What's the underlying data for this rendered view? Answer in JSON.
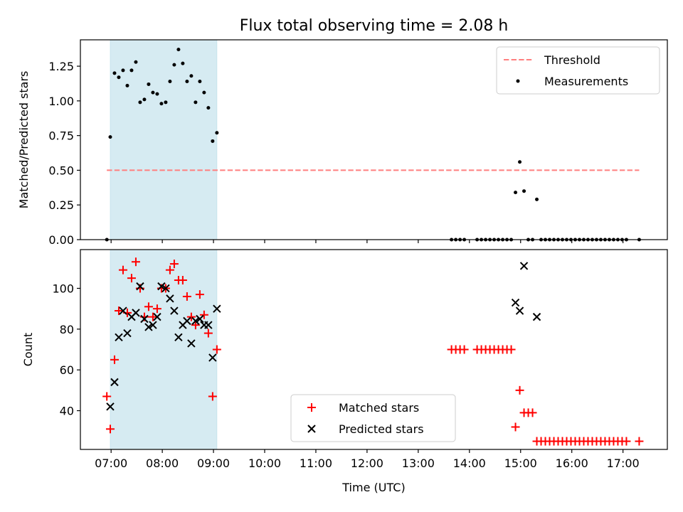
{
  "chart_data": [
    {
      "type": "scatter",
      "title": "Flux total observing time = 2.08 h",
      "xlabel": "",
      "ylabel": "Matched/Predicted stars",
      "ylim": [
        0,
        1.44
      ],
      "yticks": [
        0.0,
        0.25,
        0.5,
        0.75,
        1.0,
        1.25
      ],
      "ytick_labels": [
        "0.00",
        "0.25",
        "0.50",
        "0.75",
        "1.00",
        "1.25"
      ],
      "shaded_span": [
        "06:59",
        "09:04"
      ],
      "threshold": {
        "name": "Threshold",
        "value": 0.5,
        "x_range": [
          "06:55",
          "17:19"
        ],
        "color": "#ff7f7f"
      },
      "series": [
        {
          "name": "Measurements",
          "color": "#000000",
          "marker": "dot",
          "points": [
            [
              "06:55",
              0.0
            ],
            [
              "06:59",
              0.74
            ],
            [
              "07:04",
              1.2
            ],
            [
              "07:09",
              1.17
            ],
            [
              "07:14",
              1.22
            ],
            [
              "07:19",
              1.11
            ],
            [
              "07:24",
              1.22
            ],
            [
              "07:29",
              1.28
            ],
            [
              "07:34",
              0.99
            ],
            [
              "07:39",
              1.01
            ],
            [
              "07:44",
              1.12
            ],
            [
              "07:49",
              1.06
            ],
            [
              "07:54",
              1.05
            ],
            [
              "07:59",
              0.98
            ],
            [
              "08:04",
              0.99
            ],
            [
              "08:09",
              1.14
            ],
            [
              "08:14",
              1.26
            ],
            [
              "08:19",
              1.37
            ],
            [
              "08:24",
              1.27
            ],
            [
              "08:29",
              1.14
            ],
            [
              "08:34",
              1.18
            ],
            [
              "08:39",
              0.99
            ],
            [
              "08:44",
              1.14
            ],
            [
              "08:49",
              1.06
            ],
            [
              "08:54",
              0.95
            ],
            [
              "08:59",
              0.71
            ],
            [
              "09:04",
              0.77
            ],
            [
              "13:39",
              0.0
            ],
            [
              "13:44",
              0.0
            ],
            [
              "13:49",
              0.0
            ],
            [
              "13:54",
              0.0
            ],
            [
              "14:09",
              0.0
            ],
            [
              "14:14",
              0.0
            ],
            [
              "14:19",
              0.0
            ],
            [
              "14:24",
              0.0
            ],
            [
              "14:29",
              0.0
            ],
            [
              "14:34",
              0.0
            ],
            [
              "14:39",
              0.0
            ],
            [
              "14:44",
              0.0
            ],
            [
              "14:49",
              0.0
            ],
            [
              "14:54",
              0.34
            ],
            [
              "14:59",
              0.56
            ],
            [
              "15:04",
              0.35
            ],
            [
              "15:09",
              0.0
            ],
            [
              "15:14",
              0.0
            ],
            [
              "15:19",
              0.29
            ],
            [
              "15:24",
              0.0
            ],
            [
              "15:29",
              0.0
            ],
            [
              "15:34",
              0.0
            ],
            [
              "15:39",
              0.0
            ],
            [
              "15:44",
              0.0
            ],
            [
              "15:49",
              0.0
            ],
            [
              "15:54",
              0.0
            ],
            [
              "15:59",
              0.0
            ],
            [
              "16:04",
              0.0
            ],
            [
              "16:09",
              0.0
            ],
            [
              "16:14",
              0.0
            ],
            [
              "16:19",
              0.0
            ],
            [
              "16:24",
              0.0
            ],
            [
              "16:29",
              0.0
            ],
            [
              "16:34",
              0.0
            ],
            [
              "16:39",
              0.0
            ],
            [
              "16:44",
              0.0
            ],
            [
              "16:49",
              0.0
            ],
            [
              "16:54",
              0.0
            ],
            [
              "16:59",
              0.0
            ],
            [
              "17:04",
              0.0
            ],
            [
              "17:19",
              0.0
            ]
          ]
        }
      ],
      "legend_position": "upper right",
      "grid": false
    },
    {
      "type": "scatter",
      "title": "",
      "xlabel": "Time (UTC)",
      "ylabel": "Count",
      "ylim": [
        21,
        119
      ],
      "yticks": [
        40,
        60,
        80,
        100
      ],
      "ytick_labels": [
        "40",
        "60",
        "80",
        "100"
      ],
      "xlim": [
        "06:24",
        "17:52"
      ],
      "xtick_labels": [
        "07:00",
        "08:00",
        "09:00",
        "10:00",
        "11:00",
        "12:00",
        "13:00",
        "14:00",
        "15:00",
        "16:00",
        "17:00"
      ],
      "shaded_span": [
        "06:59",
        "09:04"
      ],
      "series": [
        {
          "name": "Matched stars",
          "color": "#ff0000",
          "marker": "plus",
          "points": [
            [
              "06:55",
              47
            ],
            [
              "06:59",
              31
            ],
            [
              "07:04",
              65
            ],
            [
              "07:09",
              89
            ],
            [
              "07:14",
              109
            ],
            [
              "07:19",
              88
            ],
            [
              "07:24",
              105
            ],
            [
              "07:29",
              113
            ],
            [
              "07:34",
              100
            ],
            [
              "07:39",
              86
            ],
            [
              "07:44",
              91
            ],
            [
              "07:49",
              86
            ],
            [
              "07:54",
              90
            ],
            [
              "07:59",
              100
            ],
            [
              "08:04",
              100
            ],
            [
              "08:09",
              109
            ],
            [
              "08:14",
              112
            ],
            [
              "08:19",
              104
            ],
            [
              "08:24",
              104
            ],
            [
              "08:29",
              96
            ],
            [
              "08:34",
              86
            ],
            [
              "08:39",
              82
            ],
            [
              "08:44",
              97
            ],
            [
              "08:49",
              87
            ],
            [
              "08:54",
              78
            ],
            [
              "08:59",
              47
            ],
            [
              "09:04",
              70
            ],
            [
              "13:39",
              70
            ],
            [
              "13:44",
              70
            ],
            [
              "13:49",
              70
            ],
            [
              "13:54",
              70
            ],
            [
              "14:09",
              70
            ],
            [
              "14:14",
              70
            ],
            [
              "14:19",
              70
            ],
            [
              "14:24",
              70
            ],
            [
              "14:29",
              70
            ],
            [
              "14:34",
              70
            ],
            [
              "14:39",
              70
            ],
            [
              "14:44",
              70
            ],
            [
              "14:49",
              70
            ],
            [
              "14:54",
              32
            ],
            [
              "14:59",
              50
            ],
            [
              "15:04",
              39
            ],
            [
              "15:09",
              39
            ],
            [
              "15:14",
              39
            ],
            [
              "15:19",
              25
            ],
            [
              "15:24",
              25
            ],
            [
              "15:29",
              25
            ],
            [
              "15:34",
              25
            ],
            [
              "15:39",
              25
            ],
            [
              "15:44",
              25
            ],
            [
              "15:49",
              25
            ],
            [
              "15:54",
              25
            ],
            [
              "15:59",
              25
            ],
            [
              "16:04",
              25
            ],
            [
              "16:09",
              25
            ],
            [
              "16:14",
              25
            ],
            [
              "16:19",
              25
            ],
            [
              "16:24",
              25
            ],
            [
              "16:29",
              25
            ],
            [
              "16:34",
              25
            ],
            [
              "16:39",
              25
            ],
            [
              "16:44",
              25
            ],
            [
              "16:49",
              25
            ],
            [
              "16:54",
              25
            ],
            [
              "16:59",
              25
            ],
            [
              "17:04",
              25
            ],
            [
              "17:19",
              25
            ]
          ]
        },
        {
          "name": "Predicted stars",
          "color": "#000000",
          "marker": "x",
          "points": [
            [
              "06:59",
              42
            ],
            [
              "07:04",
              54
            ],
            [
              "07:09",
              76
            ],
            [
              "07:14",
              89
            ],
            [
              "07:19",
              78
            ],
            [
              "07:24",
              86
            ],
            [
              "07:29",
              88
            ],
            [
              "07:34",
              101
            ],
            [
              "07:39",
              85
            ],
            [
              "07:44",
              81
            ],
            [
              "07:49",
              82
            ],
            [
              "07:54",
              86
            ],
            [
              "07:59",
              101
            ],
            [
              "08:04",
              100
            ],
            [
              "08:09",
              95
            ],
            [
              "08:14",
              89
            ],
            [
              "08:19",
              76
            ],
            [
              "08:24",
              82
            ],
            [
              "08:29",
              84
            ],
            [
              "08:34",
              73
            ],
            [
              "08:39",
              84
            ],
            [
              "08:44",
              85
            ],
            [
              "08:49",
              82
            ],
            [
              "08:54",
              82
            ],
            [
              "08:59",
              66
            ],
            [
              "09:04",
              90
            ],
            [
              "14:54",
              93
            ],
            [
              "14:59",
              89
            ],
            [
              "15:04",
              111
            ],
            [
              "15:19",
              86
            ]
          ]
        }
      ],
      "legend_position": "lower center",
      "grid": false
    }
  ]
}
